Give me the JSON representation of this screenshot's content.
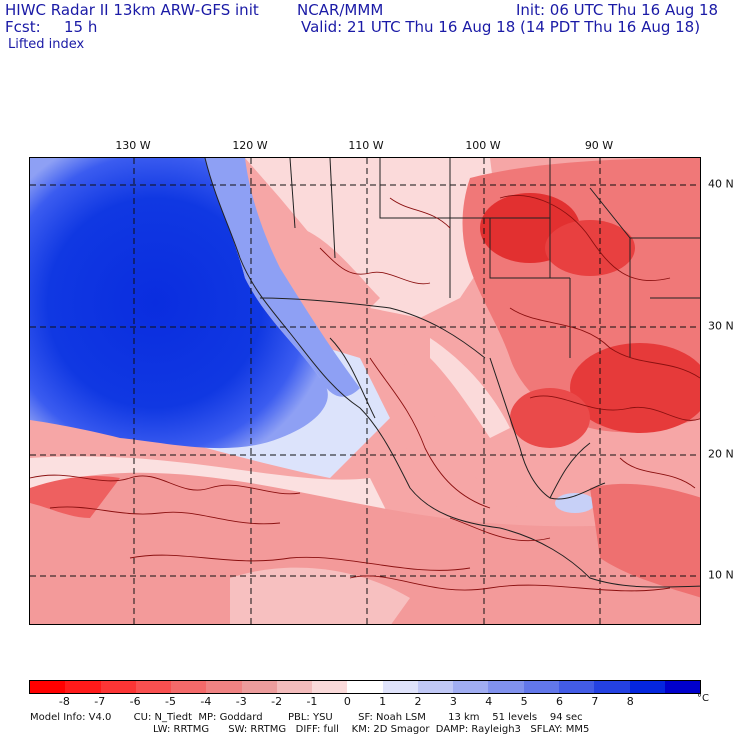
{
  "header": {
    "title": "HIWC Radar II 13km ARW-GFS init",
    "org": "NCAR/MMM",
    "init": "Init: 06 UTC Thu 16 Aug 18",
    "fcst_label": "Fcst:",
    "fcst_value": "15 h",
    "valid": "Valid: 21 UTC Thu 16 Aug 18 (14 PDT Thu 16 Aug 18)",
    "field": "Lifted index"
  },
  "map": {
    "lon_labels": [
      "130 W",
      "120 W",
      "110 W",
      "100 W",
      "90 W"
    ],
    "lat_labels": [
      "40 N",
      "30 N",
      "20 N",
      "10 N"
    ],
    "colors": {
      "deep_blue": "#0a2ddf",
      "mid_blue": "#3b5cf0",
      "light_blue": "#9fb0f5",
      "pale_blue": "#dce3fb",
      "white": "#ffffff",
      "pale_red": "#fbd4d4",
      "light_red": "#f6a6a6",
      "mid_red": "#f07878",
      "red": "#ea4a4a",
      "deep_red": "#e02020",
      "contour": "#8b1010",
      "border": "#222222"
    }
  },
  "legend": {
    "unit": "°C",
    "ticks": [
      "-8",
      "-7",
      "-6",
      "-5",
      "-4",
      "-3",
      "-2",
      "-1",
      "0",
      "1",
      "2",
      "3",
      "4",
      "5",
      "6",
      "7",
      "8"
    ],
    "colors": [
      "#ff0000",
      "#ff1a1a",
      "#fc3535",
      "#f95050",
      "#f46a6a",
      "#f08383",
      "#ec9c9c",
      "#f3bcbc",
      "#fadada",
      "#ffffff",
      "#dfe3fb",
      "#c0c8f6",
      "#a0adf2",
      "#8192ee",
      "#6277ea",
      "#435ce6",
      "#2441e2",
      "#0526de",
      "#0000cc"
    ]
  },
  "model_info": {
    "line1": "Model Info: V4.0       CU: N_Tiedt  MP: Goddard        PBL: YSU        SF: Noah LSM       13 km    51 levels    94 sec",
    "line2": "LW: RRTMG      SW: RRTMG   DIFF: full    KM: 2D Smagor  DAMP: Rayleigh3   SFLAY: MM5"
  }
}
